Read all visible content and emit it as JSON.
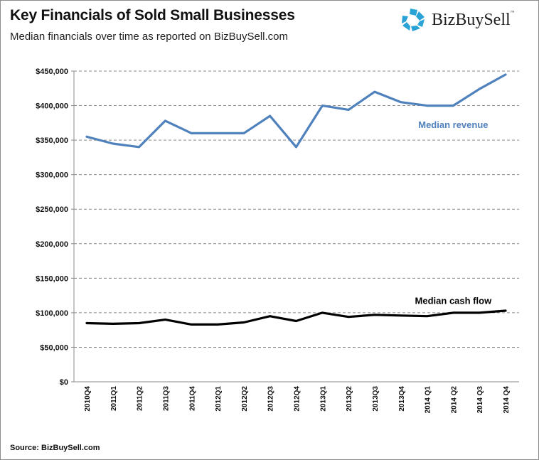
{
  "header": {
    "title": "Key Financials of Sold Small Businesses",
    "subtitle": "Median financials over time as reported on BizBuySell.com"
  },
  "logo": {
    "icon": "bizbuysell-star-icon",
    "text": "BizBuySell",
    "trademark": "™",
    "color": "#29a3d6"
  },
  "footer": {
    "source": "Source: BizBuySell.com"
  },
  "chart_data": {
    "type": "line",
    "title": "Key Financials of Sold Small Businesses",
    "subtitle": "Median financials over time as reported on BizBuySell.com",
    "xlabel": "",
    "ylabel": "",
    "ylim": [
      0,
      450000
    ],
    "yticks": [
      0,
      50000,
      100000,
      150000,
      200000,
      250000,
      300000,
      350000,
      400000,
      450000
    ],
    "ytick_labels": [
      "$0",
      "$50,000",
      "$100,000",
      "$150,000",
      "$200,000",
      "$250,000",
      "$300,000",
      "$350,000",
      "$400,000",
      "$450,000"
    ],
    "grid": "horizontal-dashed",
    "legend": "none (inline annotations)",
    "categories": [
      "2010Q4",
      "2011Q1",
      "2011Q2",
      "2011Q3",
      "2011Q4",
      "2012Q1",
      "2012Q2",
      "2012Q3",
      "2012Q4",
      "2013Q1",
      "2013Q2",
      "2013Q3",
      "2013Q4",
      "2014 Q1",
      "2014 Q2",
      "2014 Q3",
      "2014 Q4"
    ],
    "series": [
      {
        "name": "Median revenue",
        "color": "#4f81bd",
        "values": [
          355000,
          345000,
          340000,
          378000,
          360000,
          360000,
          360000,
          385000,
          340000,
          400000,
          394000,
          420000,
          405000,
          400000,
          400000,
          424000,
          445000
        ]
      },
      {
        "name": "Median cash flow",
        "color": "#000000",
        "values": [
          85000,
          84000,
          85000,
          90000,
          83000,
          83000,
          86000,
          95000,
          88000,
          100000,
          94000,
          97000,
          96000,
          95000,
          100000,
          100000,
          103000
        ]
      }
    ],
    "annotations": [
      {
        "text": "Median revenue",
        "series": "Median revenue",
        "anchor_value": 373000,
        "anchor_category": "2014 Q2"
      },
      {
        "text": "Median cash flow",
        "series": "Median cash flow",
        "anchor_value": 118000,
        "anchor_category": "2014 Q2"
      }
    ]
  }
}
